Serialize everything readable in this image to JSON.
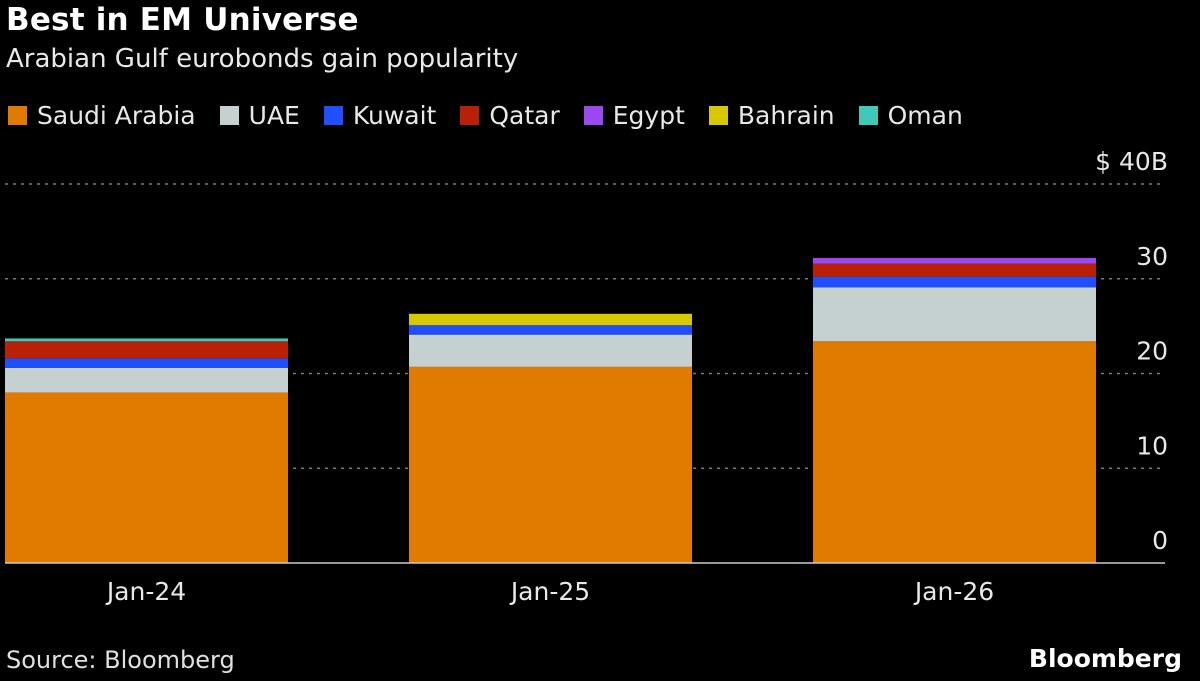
{
  "chart_data": {
    "type": "bar",
    "stacked": true,
    "title": "Best in EM Universe",
    "subtitle": "Arabian Gulf eurobonds gain popularity",
    "categories": [
      "Jan-24",
      "Jan-25",
      "Jan-26"
    ],
    "series": [
      {
        "name": "Saudi Arabia",
        "color": "#e07b00",
        "values": [
          18.0,
          20.7,
          23.4
        ]
      },
      {
        "name": "UAE",
        "color": "#c5d0d0",
        "values": [
          2.6,
          3.4,
          5.7
        ]
      },
      {
        "name": "Kuwait",
        "color": "#1f4fff",
        "values": [
          1.0,
          1.0,
          1.1
        ]
      },
      {
        "name": "Qatar",
        "color": "#b82008",
        "values": [
          1.8,
          0,
          1.4
        ]
      },
      {
        "name": "Egypt",
        "color": "#9a48f0",
        "values": [
          0,
          0,
          0.6
        ]
      },
      {
        "name": "Bahrain",
        "color": "#d8c800",
        "values": [
          0,
          1.2,
          0
        ]
      },
      {
        "name": "Oman",
        "color": "#40c8b8",
        "values": [
          0.3,
          0,
          0
        ]
      }
    ],
    "y_ticks": [
      "0",
      "10",
      "20",
      "30",
      "$ 40B"
    ],
    "y_tick_values": [
      0,
      10,
      20,
      30,
      40
    ],
    "ylim": [
      0,
      40
    ],
    "y_axis_position": "right",
    "grid": true,
    "legend_position": "top-left"
  },
  "source": "Source: Bloomberg",
  "logo": "Bloomberg"
}
